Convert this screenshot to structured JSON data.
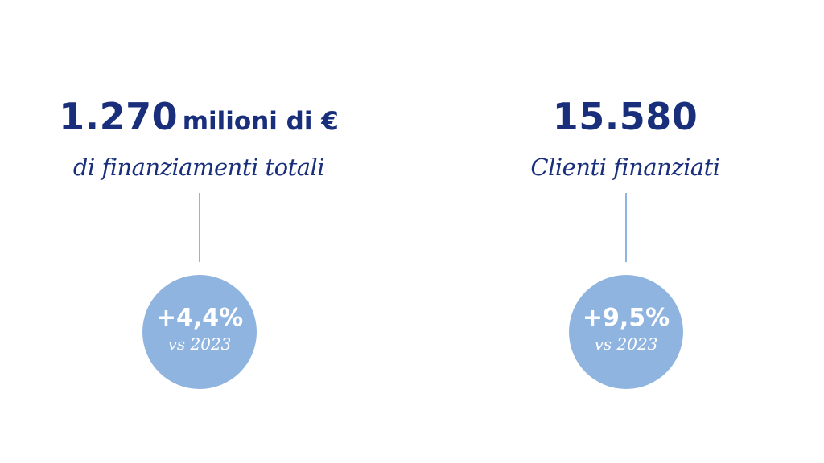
{
  "stats": [
    {
      "value": "1.270",
      "unit": "milioni di €",
      "caption": "di finanziamenti totali",
      "change": "+4,4%",
      "comparison": "vs 2023"
    },
    {
      "value": "15.580",
      "unit": "",
      "caption": "Clienti finanziati",
      "change": "+9,5%",
      "comparison": "vs 2023"
    }
  ],
  "colors": {
    "primary_text": "#1a2f7c",
    "accent_circle": "#8fb4e0",
    "background": "#ffffff"
  }
}
